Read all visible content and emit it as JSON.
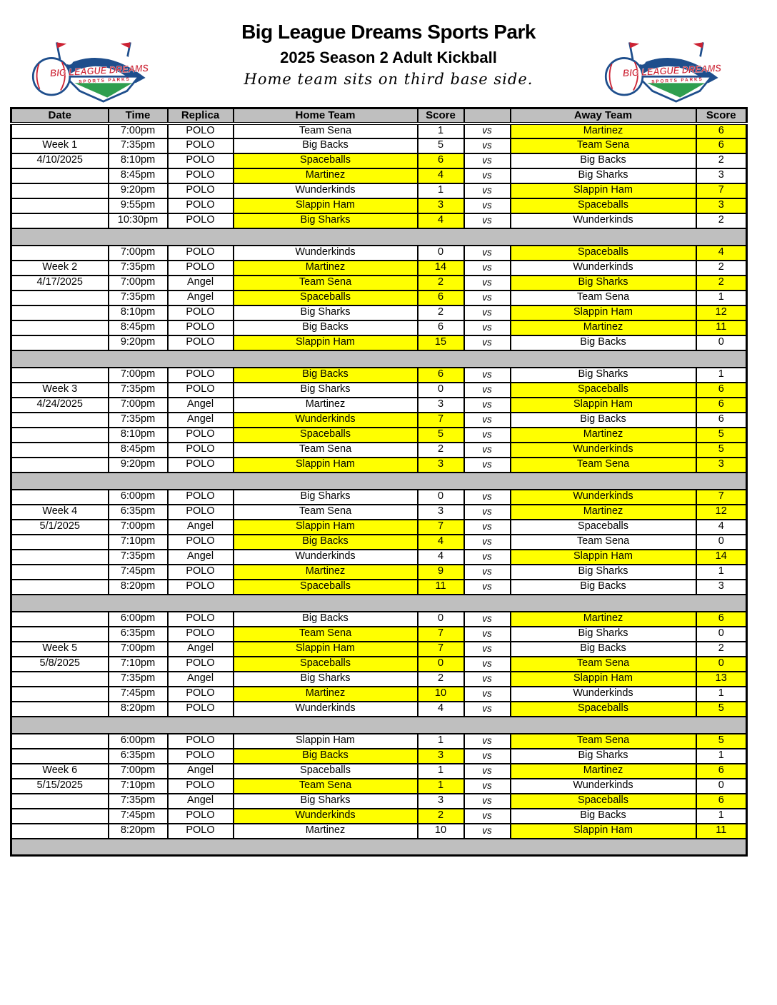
{
  "header": {
    "title": "Big League Dreams Sports Park",
    "subtitle": "2025 Season 2 Adult Kickball",
    "tagline": "Home team sits on third base side.",
    "logo": {
      "line1": "BIG LEAGUE DREAMS",
      "line2": "SPORTS PARKS"
    }
  },
  "colors": {
    "highlight_yellow": "#ffff00",
    "band_gray": "#bfbfbf",
    "logo_navy": "#1e4e8c",
    "logo_red": "#cc2233",
    "logo_green": "#2f9e4f"
  },
  "table": {
    "headers": [
      "Date",
      "Time",
      "Replica",
      "Home Team",
      "Score",
      "",
      "Away Team",
      "Score"
    ],
    "vs_label": "vs",
    "weeks": [
      {
        "label": "Week 1",
        "date": "4/10/2025",
        "label_row": 1,
        "date_row": 2,
        "games": [
          {
            "time": "7:00pm",
            "replica": "POLO",
            "home": "Team Sena",
            "home_score": "1",
            "home_hl": false,
            "away": "Martinez",
            "away_score": "6",
            "away_hl": true
          },
          {
            "time": "7:35pm",
            "replica": "POLO",
            "home": "Big Backs",
            "home_score": "5",
            "home_hl": false,
            "away": "Team Sena",
            "away_score": "6",
            "away_hl": true
          },
          {
            "time": "8:10pm",
            "replica": "POLO",
            "home": "Spaceballs",
            "home_score": "6",
            "home_hl": true,
            "away": "Big Backs",
            "away_score": "2",
            "away_hl": false
          },
          {
            "time": "8:45pm",
            "replica": "POLO",
            "home": "Martinez",
            "home_score": "4",
            "home_hl": true,
            "away": "Big Sharks",
            "away_score": "3",
            "away_hl": false
          },
          {
            "time": "9:20pm",
            "replica": "POLO",
            "home": "Wunderkinds",
            "home_score": "1",
            "home_hl": false,
            "away": "Slappin Ham",
            "away_score": "7",
            "away_hl": true
          },
          {
            "time": "9:55pm",
            "replica": "POLO",
            "home": "Slappin Ham",
            "home_score": "3",
            "home_hl": true,
            "away": "Spaceballs",
            "away_score": "3",
            "away_hl": true
          },
          {
            "time": "10:30pm",
            "replica": "POLO",
            "home": "Big Sharks",
            "home_score": "4",
            "home_hl": true,
            "away": "Wunderkinds",
            "away_score": "2",
            "away_hl": false
          }
        ]
      },
      {
        "label": "Week 2",
        "date": "4/17/2025",
        "label_row": 1,
        "date_row": 2,
        "games": [
          {
            "time": "7:00pm",
            "replica": "POLO",
            "home": "Wunderkinds",
            "home_score": "0",
            "home_hl": false,
            "away": "Spaceballs",
            "away_score": "4",
            "away_hl": true
          },
          {
            "time": "7:35pm",
            "replica": "POLO",
            "home": "Martinez",
            "home_score": "14",
            "home_hl": true,
            "away": "Wunderkinds",
            "away_score": "2",
            "away_hl": false
          },
          {
            "time": "7:00pm",
            "replica": "Angel",
            "home": "Team Sena",
            "home_score": "2",
            "home_hl": true,
            "away": "Big Sharks",
            "away_score": "2",
            "away_hl": true
          },
          {
            "time": "7:35pm",
            "replica": "Angel",
            "home": "Spaceballs",
            "home_score": "6",
            "home_hl": true,
            "away": "Team Sena",
            "away_score": "1",
            "away_hl": false
          },
          {
            "time": "8:10pm",
            "replica": "POLO",
            "home": "Big Sharks",
            "home_score": "2",
            "home_hl": false,
            "away": "Slappin Ham",
            "away_score": "12",
            "away_hl": true
          },
          {
            "time": "8:45pm",
            "replica": "POLO",
            "home": "Big Backs",
            "home_score": "6",
            "home_hl": false,
            "away": "Martinez",
            "away_score": "11",
            "away_hl": true
          },
          {
            "time": "9:20pm",
            "replica": "POLO",
            "home": "Slappin Ham",
            "home_score": "15",
            "home_hl": true,
            "away": "Big Backs",
            "away_score": "0",
            "away_hl": false
          }
        ]
      },
      {
        "label": "Week 3",
        "date": "4/24/2025",
        "label_row": 1,
        "date_row": 2,
        "games": [
          {
            "time": "7:00pm",
            "replica": "POLO",
            "home": "Big Backs",
            "home_score": "6",
            "home_hl": true,
            "away": "Big Sharks",
            "away_score": "1",
            "away_hl": false
          },
          {
            "time": "7:35pm",
            "replica": "POLO",
            "home": "Big Sharks",
            "home_score": "0",
            "home_hl": false,
            "away": "Spaceballs",
            "away_score": "6",
            "away_hl": true
          },
          {
            "time": "7:00pm",
            "replica": "Angel",
            "home": "Martinez",
            "home_score": "3",
            "home_hl": false,
            "away": "Slappin Ham",
            "away_score": "6",
            "away_hl": true
          },
          {
            "time": "7:35pm",
            "replica": "Angel",
            "home": "Wunderkinds",
            "home_score": "7",
            "home_hl": true,
            "away": "Big Backs",
            "away_score": "6",
            "away_hl": false
          },
          {
            "time": "8:10pm",
            "replica": "POLO",
            "home": "Spaceballs",
            "home_score": "5",
            "home_hl": true,
            "away": "Martinez",
            "away_score": "5",
            "away_hl": true
          },
          {
            "time": "8:45pm",
            "replica": "POLO",
            "home": "Team Sena",
            "home_score": "2",
            "home_hl": false,
            "away": "Wunderkinds",
            "away_score": "5",
            "away_hl": true
          },
          {
            "time": "9:20pm",
            "replica": "POLO",
            "home": "Slappin Ham",
            "home_score": "3",
            "home_hl": true,
            "away": "Team Sena",
            "away_score": "3",
            "away_hl": true
          }
        ]
      },
      {
        "label": "Week 4",
        "date": "5/1/2025",
        "label_row": 1,
        "date_row": 2,
        "games": [
          {
            "time": "6:00pm",
            "replica": "POLO",
            "home": "Big Sharks",
            "home_score": "0",
            "home_hl": false,
            "away": "Wunderkinds",
            "away_score": "7",
            "away_hl": true
          },
          {
            "time": "6:35pm",
            "replica": "POLO",
            "home": "Team Sena",
            "home_score": "3",
            "home_hl": false,
            "away": "Martinez",
            "away_score": "12",
            "away_hl": true
          },
          {
            "time": "7:00pm",
            "replica": "Angel",
            "home": "Slappin Ham",
            "home_score": "7",
            "home_hl": true,
            "away": "Spaceballs",
            "away_score": "4",
            "away_hl": false
          },
          {
            "time": "7:10pm",
            "replica": "POLO",
            "home": "Big Backs",
            "home_score": "4",
            "home_hl": true,
            "away": "Team Sena",
            "away_score": "0",
            "away_hl": false
          },
          {
            "time": "7:35pm",
            "replica": "Angel",
            "home": "Wunderkinds",
            "home_score": "4",
            "home_hl": false,
            "away": "Slappin Ham",
            "away_score": "14",
            "away_hl": true
          },
          {
            "time": "7:45pm",
            "replica": "POLO",
            "home": "Martinez",
            "home_score": "9",
            "home_hl": true,
            "away": "Big Sharks",
            "away_score": "1",
            "away_hl": false
          },
          {
            "time": "8:20pm",
            "replica": "POLO",
            "home": "Spaceballs",
            "home_score": "11",
            "home_hl": true,
            "away": "Big Backs",
            "away_score": "3",
            "away_hl": false
          }
        ]
      },
      {
        "label": "Week 5",
        "date": "5/8/2025",
        "label_row": 2,
        "date_row": 3,
        "games": [
          {
            "time": "6:00pm",
            "replica": "POLO",
            "home": "Big Backs",
            "home_score": "0",
            "home_hl": false,
            "away": "Martinez",
            "away_score": "6",
            "away_hl": true
          },
          {
            "time": "6:35pm",
            "replica": "POLO",
            "home": "Team Sena",
            "home_score": "7",
            "home_hl": true,
            "away": "Big Sharks",
            "away_score": "0",
            "away_hl": false
          },
          {
            "time": "7:00pm",
            "replica": "Angel",
            "home": "Slappin Ham",
            "home_score": "7",
            "home_hl": true,
            "away": "Big Backs",
            "away_score": "2",
            "away_hl": false
          },
          {
            "time": "7:10pm",
            "replica": "POLO",
            "home": "Spaceballs",
            "home_score": "0",
            "home_hl": true,
            "away": "Team Sena",
            "away_score": "0",
            "away_hl": true
          },
          {
            "time": "7:35pm",
            "replica": "Angel",
            "home": "Big Sharks",
            "home_score": "2",
            "home_hl": false,
            "away": "Slappin Ham",
            "away_score": "13",
            "away_hl": true
          },
          {
            "time": "7:45pm",
            "replica": "POLO",
            "home": "Martinez",
            "home_score": "10",
            "home_hl": true,
            "away": "Wunderkinds",
            "away_score": "1",
            "away_hl": false
          },
          {
            "time": "8:20pm",
            "replica": "POLO",
            "home": "Wunderkinds",
            "home_score": "4",
            "home_hl": false,
            "away": "Spaceballs",
            "away_score": "5",
            "away_hl": true
          }
        ]
      },
      {
        "label": "Week 6",
        "date": "5/15/2025",
        "label_row": 2,
        "date_row": 3,
        "games": [
          {
            "time": "6:00pm",
            "replica": "POLO",
            "home": "Slappin Ham",
            "home_score": "1",
            "home_hl": false,
            "away": "Team Sena",
            "away_score": "5",
            "away_hl": true
          },
          {
            "time": "6:35pm",
            "replica": "POLO",
            "home": "Big Backs",
            "home_score": "3",
            "home_hl": true,
            "away": "Big Sharks",
            "away_score": "1",
            "away_hl": false
          },
          {
            "time": "7:00pm",
            "replica": "Angel",
            "home": "Spaceballs",
            "home_score": "1",
            "home_hl": false,
            "away": "Martinez",
            "away_score": "6",
            "away_hl": true
          },
          {
            "time": "7:10pm",
            "replica": "POLO",
            "home": "Team Sena",
            "home_score": "1",
            "home_hl": true,
            "away": "Wunderkinds",
            "away_score": "0",
            "away_hl": false
          },
          {
            "time": "7:35pm",
            "replica": "Angel",
            "home": "Big Sharks",
            "home_score": "3",
            "home_hl": false,
            "away": "Spaceballs",
            "away_score": "6",
            "away_hl": true
          },
          {
            "time": "7:45pm",
            "replica": "POLO",
            "home": "Wunderkinds",
            "home_score": "2",
            "home_hl": true,
            "away": "Big Backs",
            "away_score": "1",
            "away_hl": false
          },
          {
            "time": "8:20pm",
            "replica": "POLO",
            "home": "Martinez",
            "home_score": "10",
            "home_hl": false,
            "away": "Slappin Ham",
            "away_score": "11",
            "away_hl": true
          }
        ]
      }
    ]
  }
}
